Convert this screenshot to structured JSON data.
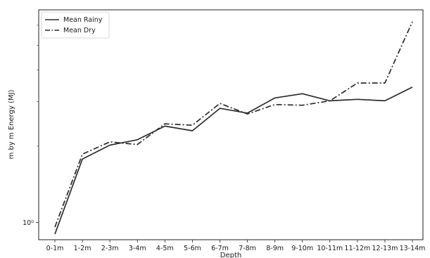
{
  "chart_data": {
    "type": "line",
    "title": "",
    "xlabel": "Depth",
    "ylabel": "m by m Energy (MJ)",
    "yscale": "log",
    "ylim": [
      0.855,
      6.9
    ],
    "yticks": [
      {
        "value": 1,
        "label": "10⁰"
      }
    ],
    "grid": false,
    "legend_position": "top-left",
    "categories": [
      "0-1m",
      "1-2m",
      "2-3m",
      "3-4m",
      "4-5m",
      "5-6m",
      "6-7m",
      "7-8m",
      "8-9m",
      "9-10m",
      "10-11m",
      "11-12m",
      "12-13m",
      "13-14m"
    ],
    "series": [
      {
        "name": "Mean Rainy",
        "line_style": "solid",
        "color": "#2b2b2b",
        "values": [
          0.9,
          1.78,
          2.02,
          2.12,
          2.4,
          2.3,
          2.82,
          2.7,
          3.1,
          3.22,
          3.02,
          3.06,
          3.02,
          3.42
        ]
      },
      {
        "name": "Mean Dry",
        "line_style": "dashdot",
        "color": "#2b2b2b",
        "values": [
          0.96,
          1.86,
          2.08,
          2.03,
          2.45,
          2.42,
          2.95,
          2.68,
          2.92,
          2.9,
          3.02,
          3.55,
          3.55,
          6.2
        ]
      }
    ]
  }
}
